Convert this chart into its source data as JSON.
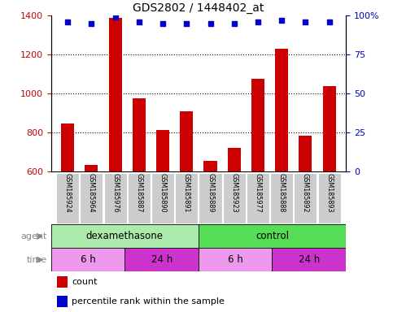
{
  "title": "GDS2802 / 1448402_at",
  "samples": [
    "GSM185924",
    "GSM185964",
    "GSM185976",
    "GSM185887",
    "GSM185890",
    "GSM185891",
    "GSM185889",
    "GSM185923",
    "GSM185977",
    "GSM185888",
    "GSM185892",
    "GSM185893"
  ],
  "counts": [
    848,
    635,
    1390,
    975,
    815,
    910,
    655,
    720,
    1075,
    1230,
    785,
    1038
  ],
  "percentile_ranks": [
    96,
    95,
    99,
    96,
    95,
    95,
    95,
    95,
    96,
    97,
    96,
    96
  ],
  "bar_color": "#cc0000",
  "dot_color": "#0000cc",
  "ylim": [
    600,
    1400
  ],
  "yticks": [
    600,
    800,
    1000,
    1200,
    1400
  ],
  "y2lim": [
    0,
    100
  ],
  "y2ticks": [
    0,
    25,
    50,
    75,
    100
  ],
  "y2ticklabels": [
    "0",
    "25",
    "50",
    "75",
    "100%"
  ],
  "agent_groups": [
    {
      "label": "dexamethasone",
      "start": 0,
      "end": 5,
      "color": "#aaeaaa"
    },
    {
      "label": "control",
      "start": 6,
      "end": 11,
      "color": "#55dd55"
    }
  ],
  "time_groups": [
    {
      "label": "6 h",
      "start": 0,
      "end": 2,
      "color": "#ee99ee"
    },
    {
      "label": "24 h",
      "start": 3,
      "end": 5,
      "color": "#cc33cc"
    },
    {
      "label": "6 h",
      "start": 6,
      "end": 8,
      "color": "#ee99ee"
    },
    {
      "label": "24 h",
      "start": 9,
      "end": 11,
      "color": "#cc33cc"
    }
  ],
  "bg_color": "#ffffff",
  "tick_label_color_left": "#cc0000",
  "tick_label_color_right": "#0000cc",
  "grid_color": "#000000",
  "bar_width": 0.55,
  "sample_area_color": "#cccccc",
  "label_arrow_color": "#888888"
}
